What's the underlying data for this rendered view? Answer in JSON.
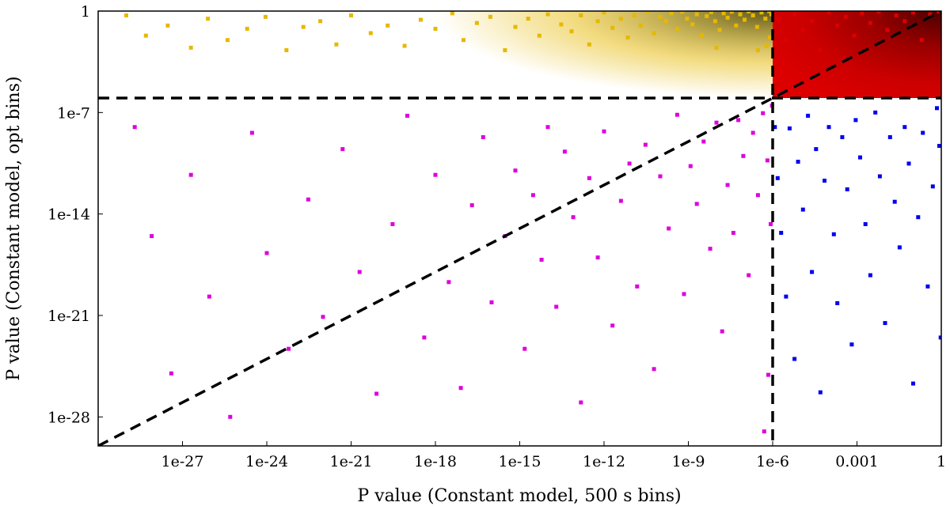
{
  "chart_data": {
    "type": "scatter",
    "xlabel": "P value (Constant model, 500 s bins)",
    "ylabel": "P value (Constant model, opt bins)",
    "x_scale": "log",
    "y_scale": "log",
    "xlim": [
      1e-30,
      1
    ],
    "ylim": [
      1e-30,
      1
    ],
    "xticks": [
      {
        "value": 1e-27,
        "label": "1e-27"
      },
      {
        "value": 1e-24,
        "label": "1e-24"
      },
      {
        "value": 1e-21,
        "label": "1e-21"
      },
      {
        "value": 1e-18,
        "label": "1e-18"
      },
      {
        "value": 1e-15,
        "label": "1e-15"
      },
      {
        "value": 1e-12,
        "label": "1e-12"
      },
      {
        "value": 1e-09,
        "label": "1e-9"
      },
      {
        "value": 1e-06,
        "label": "1e-6"
      },
      {
        "value": 0.001,
        "label": "0.001"
      },
      {
        "value": 1,
        "label": "1"
      }
    ],
    "yticks": [
      {
        "value": 1e-28,
        "label": "1e-28"
      },
      {
        "value": 1e-21,
        "label": "1e-21"
      },
      {
        "value": 1e-14,
        "label": "1e-14"
      },
      {
        "value": 1e-07,
        "label": "1e-7"
      },
      {
        "value": 1,
        "label": "1"
      }
    ],
    "threshold_lines": [
      {
        "orientation": "vertical",
        "x": 1e-06,
        "style": "dashed",
        "color": "#000000"
      },
      {
        "orientation": "horizontal",
        "y": 1e-06,
        "style": "dashed",
        "color": "#000000"
      },
      {
        "orientation": "diagonal",
        "from": [
          1e-30,
          1e-30
        ],
        "to": [
          1,
          1
        ],
        "style": "dashed",
        "color": "#000000"
      }
    ],
    "series": [
      {
        "color": "#e6b800",
        "region": "x < 1e-6, y >= 1e-6",
        "points": [
          [
            1e-29,
            0.5
          ],
          [
            5e-29,
            0.02
          ],
          [
            3e-28,
            0.1
          ],
          [
            2e-27,
            0.003
          ],
          [
            8e-27,
            0.3
          ],
          [
            4e-26,
            0.01
          ],
          [
            2e-25,
            0.06
          ],
          [
            9e-25,
            0.4
          ],
          [
            5e-24,
            0.002
          ],
          [
            2e-23,
            0.08
          ],
          [
            8e-23,
            0.2
          ],
          [
            3e-22,
            0.005
          ],
          [
            1e-21,
            0.5
          ],
          [
            5e-21,
            0.03
          ],
          [
            2e-20,
            0.1
          ],
          [
            8e-20,
            0.004
          ],
          [
            3e-19,
            0.25
          ],
          [
            1e-18,
            0.06
          ],
          [
            4e-18,
            0.7
          ],
          [
            1e-17,
            0.01
          ],
          [
            3e-17,
            0.15
          ],
          [
            9e-17,
            0.4
          ],
          [
            3e-16,
            0.002
          ],
          [
            7e-16,
            0.08
          ],
          [
            2e-15,
            0.3
          ],
          [
            5e-15,
            0.02
          ],
          [
            1e-14,
            0.6
          ],
          [
            3e-14,
            0.12
          ],
          [
            7e-14,
            0.04
          ],
          [
            1.5e-13,
            0.5
          ],
          [
            3e-13,
            0.005
          ],
          [
            6e-13,
            0.2
          ],
          [
            1e-12,
            0.8
          ],
          [
            2e-12,
            0.07
          ],
          [
            4e-12,
            0.3
          ],
          [
            7e-12,
            0.015
          ],
          [
            1.2e-11,
            0.5
          ],
          [
            2e-11,
            0.1
          ],
          [
            3.5e-11,
            0.9
          ],
          [
            6e-11,
            0.03
          ],
          [
            1e-10,
            0.4
          ],
          [
            1.6e-10,
            0.2
          ],
          [
            2.5e-10,
            0.7
          ],
          [
            4e-10,
            0.06
          ],
          [
            6e-10,
            0.9
          ],
          [
            9e-10,
            0.3
          ],
          [
            1.4e-09,
            0.12
          ],
          [
            2e-09,
            0.6
          ],
          [
            3e-09,
            0.02
          ],
          [
            4.5e-09,
            0.45
          ],
          [
            6.5e-09,
            0.85
          ],
          [
            9e-09,
            0.2
          ],
          [
            1.3e-08,
            0.05
          ],
          [
            1.8e-08,
            0.7
          ],
          [
            2.5e-08,
            0.35
          ],
          [
            3.5e-08,
            0.9
          ],
          [
            5e-08,
            0.1
          ],
          [
            7e-08,
            0.6
          ],
          [
            1e-07,
            0.25
          ],
          [
            1.4e-07,
            0.95
          ],
          [
            2e-07,
            0.5
          ],
          [
            2.8e-07,
            0.08
          ],
          [
            4e-07,
            0.8
          ],
          [
            5.5e-07,
            0.3
          ],
          [
            7.5e-07,
            0.97
          ],
          [
            9e-07,
            0.6
          ],
          [
            8e-07,
            0.015
          ],
          [
            6e-07,
            0.004
          ],
          [
            3e-07,
            0.002
          ],
          [
            1e-08,
            0.003
          ]
        ]
      },
      {
        "color": "#dd00dd",
        "region": "x < 1e-6, y < 1e-6",
        "points": [
          [
            2e-29,
            1e-08
          ],
          [
            8e-29,
            3e-16
          ],
          [
            4e-28,
            1e-25
          ],
          [
            2e-27,
            5e-12
          ],
          [
            9e-27,
            2e-20
          ],
          [
            5e-26,
            1e-28
          ],
          [
            3e-25,
            4e-09
          ],
          [
            1e-24,
            2e-17
          ],
          [
            6e-24,
            5e-24
          ],
          [
            3e-23,
            1e-13
          ],
          [
            1e-22,
            8e-22
          ],
          [
            5e-22,
            3e-10
          ],
          [
            2e-21,
            1e-18
          ],
          [
            8e-21,
            4e-27
          ],
          [
            3e-20,
            2e-15
          ],
          [
            1e-19,
            6e-08
          ],
          [
            4e-19,
            3e-23
          ],
          [
            1e-18,
            5e-12
          ],
          [
            3e-18,
            2e-19
          ],
          [
            8e-18,
            1e-26
          ],
          [
            2e-17,
            4e-14
          ],
          [
            5e-17,
            2e-09
          ],
          [
            1e-16,
            8e-21
          ],
          [
            3e-16,
            3e-16
          ],
          [
            7e-16,
            1e-11
          ],
          [
            1.5e-15,
            5e-24
          ],
          [
            3e-15,
            2e-13
          ],
          [
            6e-15,
            7e-18
          ],
          [
            1e-14,
            1e-08
          ],
          [
            2e-14,
            4e-21
          ],
          [
            4e-14,
            2e-10
          ],
          [
            8e-14,
            6e-15
          ],
          [
            1.5e-13,
            1e-27
          ],
          [
            3e-13,
            3e-12
          ],
          [
            6e-13,
            1e-17
          ],
          [
            1e-12,
            5e-09
          ],
          [
            2e-12,
            2e-22
          ],
          [
            4e-12,
            8e-14
          ],
          [
            8e-12,
            3e-11
          ],
          [
            1.5e-11,
            1e-19
          ],
          [
            3e-11,
            6e-10
          ],
          [
            6e-11,
            2e-25
          ],
          [
            1e-10,
            4e-12
          ],
          [
            2e-10,
            1e-15
          ],
          [
            4e-10,
            7e-08
          ],
          [
            7e-10,
            3e-20
          ],
          [
            1.2e-09,
            2e-11
          ],
          [
            2e-09,
            5e-14
          ],
          [
            3.5e-09,
            1e-09
          ],
          [
            6e-09,
            4e-17
          ],
          [
            1e-08,
            2e-08
          ],
          [
            1.6e-08,
            8e-23
          ],
          [
            2.5e-08,
            1e-12
          ],
          [
            4e-08,
            5e-16
          ],
          [
            6e-08,
            3e-08
          ],
          [
            9e-08,
            1e-10
          ],
          [
            1.4e-07,
            6e-19
          ],
          [
            2e-07,
            4e-09
          ],
          [
            3e-07,
            2e-13
          ],
          [
            4.5e-07,
            9e-08
          ],
          [
            6.5e-07,
            5e-11
          ],
          [
            8.5e-07,
            2e-15
          ],
          [
            9.5e-07,
            3e-07
          ],
          [
            7e-07,
            8e-26
          ],
          [
            5e-07,
            1e-29
          ]
        ]
      },
      {
        "color": "#0000ee",
        "region": "x >= 1e-6, y < 1e-6",
        "points": [
          [
            1.2e-06,
            1e-08
          ],
          [
            1.5e-06,
            3e-12
          ],
          [
            2e-06,
            5e-16
          ],
          [
            3e-06,
            2e-20
          ],
          [
            4e-06,
            8e-09
          ],
          [
            6e-06,
            1e-24
          ],
          [
            8e-06,
            4e-11
          ],
          [
            1.2e-05,
            2e-14
          ],
          [
            1.8e-05,
            6e-08
          ],
          [
            2.5e-05,
            1e-18
          ],
          [
            3.5e-05,
            3e-10
          ],
          [
            5e-05,
            5e-27
          ],
          [
            7e-05,
            2e-12
          ],
          [
            0.0001,
            1e-08
          ],
          [
            0.00015,
            4e-16
          ],
          [
            0.0002,
            7e-21
          ],
          [
            0.0003,
            2e-09
          ],
          [
            0.00045,
            5e-13
          ],
          [
            0.00065,
            1e-23
          ],
          [
            0.0009,
            3e-08
          ],
          [
            0.0013,
            8e-11
          ],
          [
            0.002,
            2e-15
          ],
          [
            0.003,
            6e-19
          ],
          [
            0.0045,
            1e-07
          ],
          [
            0.0065,
            4e-12
          ],
          [
            0.01,
            3e-22
          ],
          [
            0.015,
            2e-09
          ],
          [
            0.022,
            7e-14
          ],
          [
            0.033,
            5e-17
          ],
          [
            0.05,
            1e-08
          ],
          [
            0.07,
            3e-11
          ],
          [
            0.1,
            2e-26
          ],
          [
            0.15,
            6e-15
          ],
          [
            0.22,
            4e-09
          ],
          [
            0.33,
            1e-19
          ],
          [
            0.5,
            8e-13
          ],
          [
            0.7,
            2e-07
          ],
          [
            0.85,
            5e-10
          ],
          [
            0.95,
            3e-23
          ]
        ]
      },
      {
        "color": "#dd0000",
        "region": "x >= 1e-6, y >= 1e-6",
        "points": [
          [
            1.5e-06,
            0.3
          ],
          [
            3e-06,
            0.01
          ],
          [
            6e-06,
            0.6
          ],
          [
            1.2e-05,
            0.05
          ],
          [
            2.5e-05,
            0.2
          ],
          [
            5e-05,
            0.002
          ],
          [
            0.0001,
            0.8
          ],
          [
            0.0002,
            0.1
          ],
          [
            0.0004,
            0.4
          ],
          [
            0.0008,
            0.02
          ],
          [
            0.0015,
            0.7
          ],
          [
            0.003,
            0.15
          ],
          [
            0.006,
            0.9
          ],
          [
            0.012,
            0.05
          ],
          [
            0.025,
            0.5
          ],
          [
            0.05,
            0.2
          ],
          [
            0.1,
            0.8
          ],
          [
            0.2,
            0.01
          ],
          [
            0.4,
            0.6
          ],
          [
            0.8,
            0.95
          ]
        ]
      }
    ],
    "regions": [
      {
        "name": "red-quadrant",
        "color": "#dd0000",
        "x_range": [
          1e-06,
          1
        ],
        "y_range": [
          1e-06,
          1
        ]
      }
    ],
    "grid": false,
    "legend": "none"
  }
}
